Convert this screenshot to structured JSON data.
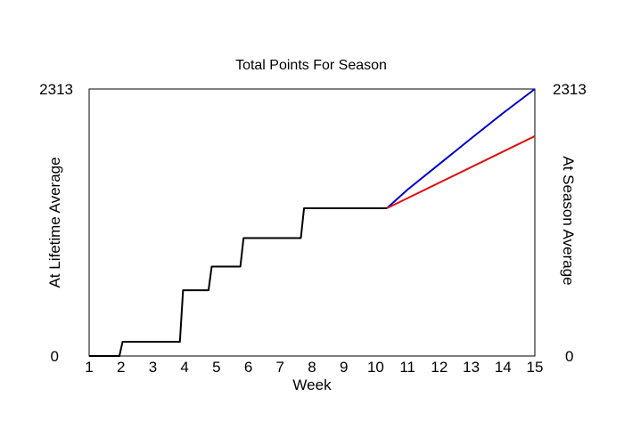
{
  "chart_data": {
    "type": "line",
    "title": "Total Points For Season",
    "xlabel": "Week",
    "ylabel_left": "At Lifetime Average",
    "ylabel_right": "At Season Average",
    "xlim": [
      1,
      15
    ],
    "ylim": [
      0,
      2313
    ],
    "x_ticks": [
      "1",
      "2",
      "3",
      "4",
      "5",
      "6",
      "7",
      "8",
      "9",
      "10",
      "11",
      "12",
      "13",
      "14",
      "15"
    ],
    "y_tick_left_min": "0",
    "y_tick_left_max": "2313",
    "y_tick_right_min": "0",
    "y_tick_right_max": "2313",
    "colors": {
      "actual": "#000000",
      "lifetime": "#0000cc",
      "season": "#dd1111",
      "ylabel_left": "#0000cc",
      "ylabel_right": "#dd1111"
    },
    "series": [
      {
        "values_x": [
          1,
          1.95,
          2.05,
          3.85,
          3.95,
          4.75,
          4.85,
          5.75,
          5.85,
          7.65,
          7.75,
          10.35
        ],
        "values_y": [
          0,
          0,
          123,
          123,
          570,
          570,
          775,
          775,
          1022,
          1022,
          1280,
          1280
        ]
      },
      {
        "values_x": [
          10.35,
          11,
          12,
          13,
          14,
          15
        ],
        "values_y": [
          1280,
          1441,
          1663,
          1885,
          2104,
          2313
        ]
      },
      {
        "values_x": [
          10.35,
          15
        ],
        "values_y": [
          1280,
          1905
        ]
      }
    ]
  }
}
